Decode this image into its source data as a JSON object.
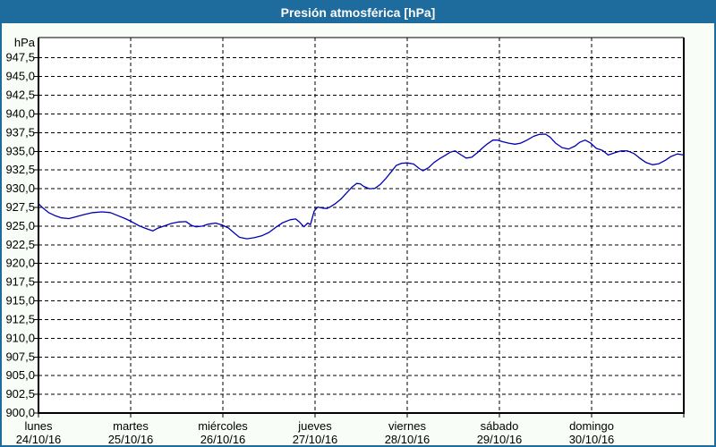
{
  "window": {
    "title": "Presión atmosférica [hPa]"
  },
  "colors": {
    "titlebar_bg": "#1e6b9e",
    "title_text": "#ffffff",
    "window_bg": "#f9fdf7",
    "plot_bg": "#ffffff",
    "grid": "#000000",
    "axis_text": "#000000",
    "line": "#0000b3",
    "outer_border": "#1e6b9e"
  },
  "chart_data": {
    "type": "line",
    "title": "Presión atmosférica [hPa]",
    "grid": "dashed",
    "legend": "none",
    "y_axis": {
      "unit_label": "hPa",
      "min": 900.0,
      "max": 947.5,
      "tick_step": 2.5,
      "ticks": [
        {
          "value": 947.5,
          "label": "947,5"
        },
        {
          "value": 945.0,
          "label": "945,0"
        },
        {
          "value": 942.5,
          "label": "942,5"
        },
        {
          "value": 940.0,
          "label": "940,0"
        },
        {
          "value": 937.5,
          "label": "937,5"
        },
        {
          "value": 935.0,
          "label": "935,0"
        },
        {
          "value": 932.5,
          "label": "932,5"
        },
        {
          "value": 930.0,
          "label": "930,0"
        },
        {
          "value": 927.5,
          "label": "927,5"
        },
        {
          "value": 925.0,
          "label": "925,0"
        },
        {
          "value": 922.5,
          "label": "922,5"
        },
        {
          "value": 920.0,
          "label": "920,0"
        },
        {
          "value": 917.5,
          "label": "917,5"
        },
        {
          "value": 915.0,
          "label": "915,0"
        },
        {
          "value": 912.5,
          "label": "912,5"
        },
        {
          "value": 910.0,
          "label": "910,0"
        },
        {
          "value": 907.5,
          "label": "907,5"
        },
        {
          "value": 905.0,
          "label": "905,0"
        },
        {
          "value": 902.5,
          "label": "902,5"
        },
        {
          "value": 900.0,
          "label": "900,0"
        }
      ]
    },
    "x_axis": {
      "span_days": 7,
      "days": [
        {
          "name": "lunes",
          "date": "24/10/16"
        },
        {
          "name": "martes",
          "date": "25/10/16"
        },
        {
          "name": "miércoles",
          "date": "26/10/16"
        },
        {
          "name": "jueves",
          "date": "27/10/16"
        },
        {
          "name": "viernes",
          "date": "28/10/16"
        },
        {
          "name": "sábado",
          "date": "29/10/16"
        },
        {
          "name": "domingo",
          "date": "30/10/16"
        }
      ]
    },
    "series": [
      {
        "name": "Presión atmosférica",
        "color": "#0000b3",
        "points": [
          [
            0.0,
            928.0
          ],
          [
            0.05,
            927.4
          ],
          [
            0.11,
            926.8
          ],
          [
            0.18,
            926.4
          ],
          [
            0.25,
            926.1
          ],
          [
            0.33,
            926.0
          ],
          [
            0.41,
            926.25
          ],
          [
            0.5,
            926.55
          ],
          [
            0.59,
            926.8
          ],
          [
            0.69,
            926.9
          ],
          [
            0.78,
            926.8
          ],
          [
            0.86,
            926.4
          ],
          [
            0.94,
            926.0
          ],
          [
            1.01,
            925.6
          ],
          [
            1.09,
            925.05
          ],
          [
            1.16,
            924.7
          ],
          [
            1.24,
            924.35
          ],
          [
            1.29,
            924.7
          ],
          [
            1.36,
            925.0
          ],
          [
            1.44,
            925.35
          ],
          [
            1.52,
            925.55
          ],
          [
            1.6,
            925.6
          ],
          [
            1.66,
            925.1
          ],
          [
            1.71,
            924.9
          ],
          [
            1.78,
            925.0
          ],
          [
            1.84,
            925.25
          ],
          [
            1.92,
            925.4
          ],
          [
            1.99,
            925.15
          ],
          [
            2.06,
            924.75
          ],
          [
            2.12,
            924.1
          ],
          [
            2.18,
            923.5
          ],
          [
            2.26,
            923.3
          ],
          [
            2.34,
            923.45
          ],
          [
            2.42,
            923.7
          ],
          [
            2.5,
            924.15
          ],
          [
            2.57,
            924.8
          ],
          [
            2.65,
            925.45
          ],
          [
            2.73,
            925.85
          ],
          [
            2.79,
            925.95
          ],
          [
            2.83,
            925.55
          ],
          [
            2.88,
            924.9
          ],
          [
            2.92,
            925.4
          ],
          [
            2.95,
            925.2
          ],
          [
            2.99,
            927.0
          ],
          [
            3.03,
            927.55
          ],
          [
            3.08,
            927.4
          ],
          [
            3.13,
            927.35
          ],
          [
            3.17,
            927.6
          ],
          [
            3.22,
            928.0
          ],
          [
            3.28,
            928.6
          ],
          [
            3.34,
            929.4
          ],
          [
            3.4,
            930.2
          ],
          [
            3.45,
            930.7
          ],
          [
            3.49,
            930.65
          ],
          [
            3.53,
            930.3
          ],
          [
            3.59,
            930.0
          ],
          [
            3.65,
            930.05
          ],
          [
            3.71,
            930.6
          ],
          [
            3.77,
            931.4
          ],
          [
            3.83,
            932.3
          ],
          [
            3.88,
            933.1
          ],
          [
            3.94,
            933.4
          ],
          [
            4.0,
            933.45
          ],
          [
            4.07,
            933.3
          ],
          [
            4.13,
            932.7
          ],
          [
            4.17,
            932.4
          ],
          [
            4.23,
            932.8
          ],
          [
            4.29,
            933.5
          ],
          [
            4.35,
            934.0
          ],
          [
            4.41,
            934.45
          ],
          [
            4.47,
            934.9
          ],
          [
            4.52,
            935.05
          ],
          [
            4.58,
            934.55
          ],
          [
            4.64,
            934.1
          ],
          [
            4.7,
            934.2
          ],
          [
            4.76,
            934.8
          ],
          [
            4.82,
            935.5
          ],
          [
            4.87,
            936.0
          ],
          [
            4.93,
            936.5
          ],
          [
            4.98,
            936.5
          ],
          [
            5.03,
            936.3
          ],
          [
            5.1,
            936.1
          ],
          [
            5.17,
            935.95
          ],
          [
            5.23,
            936.1
          ],
          [
            5.3,
            936.5
          ],
          [
            5.37,
            937.0
          ],
          [
            5.43,
            937.25
          ],
          [
            5.5,
            937.3
          ],
          [
            5.55,
            936.9
          ],
          [
            5.61,
            936.1
          ],
          [
            5.68,
            935.5
          ],
          [
            5.75,
            935.3
          ],
          [
            5.82,
            935.7
          ],
          [
            5.87,
            936.2
          ],
          [
            5.93,
            936.5
          ],
          [
            5.99,
            936.1
          ],
          [
            6.05,
            935.4
          ],
          [
            6.12,
            935.1
          ],
          [
            6.18,
            934.5
          ],
          [
            6.25,
            934.8
          ],
          [
            6.32,
            935.05
          ],
          [
            6.39,
            935.05
          ],
          [
            6.46,
            934.7
          ],
          [
            6.52,
            934.1
          ],
          [
            6.59,
            933.5
          ],
          [
            6.66,
            933.2
          ],
          [
            6.73,
            933.35
          ],
          [
            6.8,
            933.8
          ],
          [
            6.86,
            934.3
          ],
          [
            6.93,
            934.65
          ],
          [
            7.0,
            934.5
          ]
        ]
      }
    ]
  }
}
